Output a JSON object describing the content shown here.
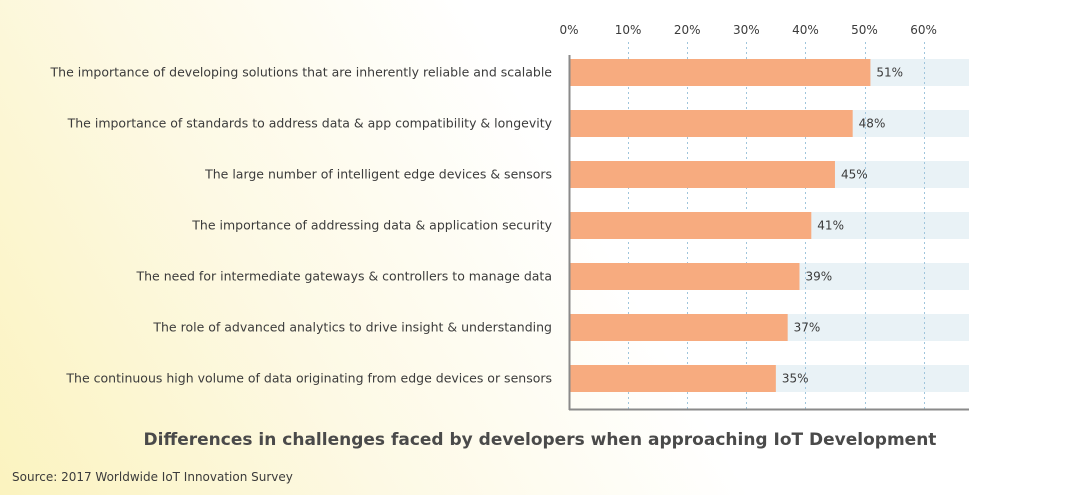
{
  "chart_data": {
    "type": "bar",
    "orientation": "horizontal",
    "title": "Differences in challenges faced by developers when approaching IoT Development",
    "xlabel": "",
    "ylabel": "",
    "xlim": [
      0,
      68
    ],
    "ticks": [
      0,
      10,
      20,
      30,
      40,
      50,
      60
    ],
    "tick_labels": [
      "0%",
      "10%",
      "20%",
      "30%",
      "40%",
      "50%",
      "60%"
    ],
    "categories": [
      "The importance of developing solutions that are inherently reliable and scalable",
      "The importance of standards to address data & app compatibility & longevity",
      "The large number of intelligent edge devices & sensors",
      "The importance of addressing data & application security",
      "The need for intermediate gateways & controllers to manage data",
      "The role of advanced analytics to drive insight & understanding",
      "The continuous high volume of data originating from edge devices or sensors"
    ],
    "values": [
      51,
      48,
      45,
      41,
      39,
      37,
      35
    ],
    "value_labels": [
      "51%",
      "48%",
      "45%",
      "41%",
      "39%",
      "37%",
      "35%"
    ],
    "grid": true,
    "bar_color": "#f7ab7f",
    "track_color": "#e9f2f6"
  },
  "source": "Source: 2017 Worldwide IoT Innovation Survey"
}
